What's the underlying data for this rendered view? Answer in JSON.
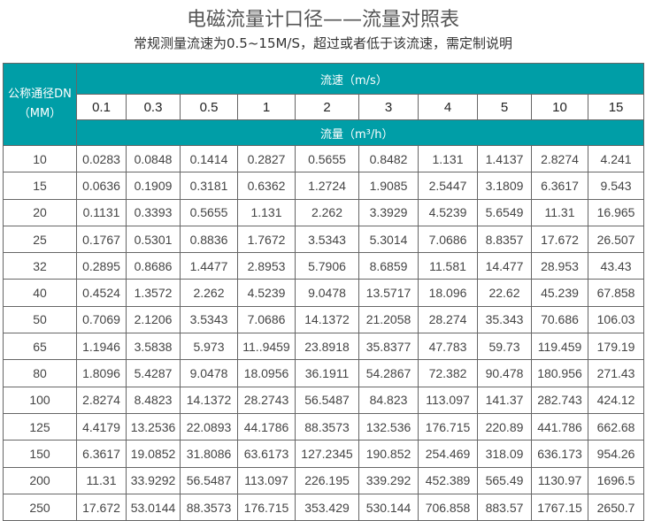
{
  "title": "电磁流量计口径——流量对照表",
  "subtitle": "常规测量流速为0.5~15M/S，超过或者低于该流速，需定制说明",
  "header": {
    "dn_label": "公称通径DN",
    "dn_unit": "（MM）",
    "velocity_label": "流速（m/s）",
    "flow_label": "流量（m³/h）",
    "velocities": [
      "0.1",
      "0.3",
      "0.5",
      "1",
      "2",
      "3",
      "4",
      "5",
      "10",
      "15"
    ]
  },
  "colors": {
    "header_bg": "#009ea7",
    "border": "#666666"
  },
  "rows": [
    {
      "dn": "10",
      "values": [
        "0.0283",
        "0.0848",
        "0.1414",
        "0.2827",
        "0.5655",
        "0.8482",
        "1.131",
        "1.4137",
        "2.8274",
        "4.241"
      ]
    },
    {
      "dn": "15",
      "values": [
        "0.0636",
        "0.1909",
        "0.3181",
        "0.6362",
        "1.2724",
        "1.9085",
        "2.5447",
        "3.1809",
        "6.3617",
        "9.543"
      ]
    },
    {
      "dn": "20",
      "values": [
        "0.1131",
        "0.3393",
        "0.5655",
        "1.131",
        "2.262",
        "3.3929",
        "4.5239",
        "5.6549",
        "11.31",
        "16.965"
      ]
    },
    {
      "dn": "25",
      "values": [
        "0.1767",
        "0.5301",
        "0.8836",
        "1.7672",
        "3.5343",
        "5.3014",
        "7.0686",
        "8.8357",
        "17.672",
        "26.507"
      ]
    },
    {
      "dn": "32",
      "values": [
        "0.2895",
        "0.8686",
        "1.4477",
        "2.8953",
        "5.7906",
        "8.6859",
        "11.581",
        "14.477",
        "28.953",
        "43.43"
      ]
    },
    {
      "dn": "40",
      "values": [
        "0.4524",
        "1.3572",
        "2.262",
        "4.5239",
        "9.0478",
        "13.5717",
        "18.096",
        "22.62",
        "45.239",
        "67.858"
      ]
    },
    {
      "dn": "50",
      "values": [
        "0.7069",
        "2.1206",
        "3.5343",
        "7.0686",
        "14.1372",
        "21.2058",
        "28.274",
        "35.343",
        "70.686",
        "106.03"
      ]
    },
    {
      "dn": "65",
      "values": [
        "1.1946",
        "3.5838",
        "5.973",
        "11..9459",
        "23.8918",
        "35.8377",
        "47.783",
        "59.73",
        "119.459",
        "179.19"
      ]
    },
    {
      "dn": "80",
      "values": [
        "1.8096",
        "5.4287",
        "9.0478",
        "18.0956",
        "36.1911",
        "54.2867",
        "72.382",
        "90.478",
        "180.956",
        "271.43"
      ]
    },
    {
      "dn": "100",
      "values": [
        "2.8274",
        "8.4823",
        "14.1372",
        "28.2743",
        "56.5487",
        "84.823",
        "113.097",
        "141.37",
        "282.743",
        "424.12"
      ]
    },
    {
      "dn": "125",
      "values": [
        "4.4179",
        "13.2536",
        "22.0893",
        "44.1786",
        "88.3573",
        "132.536",
        "176.715",
        "220.89",
        "441.786",
        "662.68"
      ]
    },
    {
      "dn": "150",
      "values": [
        "6.3617",
        "19.0852",
        "31.8086",
        "63.6173",
        "127.2345",
        "190.852",
        "254.469",
        "318.09",
        "636.173",
        "954.26"
      ]
    },
    {
      "dn": "200",
      "values": [
        "11.31",
        "33.9292",
        "56.5487",
        "113.097",
        "226.195",
        "339.292",
        "452.389",
        "565.49",
        "1130.97",
        "1696.5"
      ]
    },
    {
      "dn": "250",
      "values": [
        "17.672",
        "53.0144",
        "88.3573",
        "176.715",
        "353.429",
        "530.144",
        "706.858",
        "883.57",
        "1767.15",
        "2650.7"
      ]
    }
  ]
}
